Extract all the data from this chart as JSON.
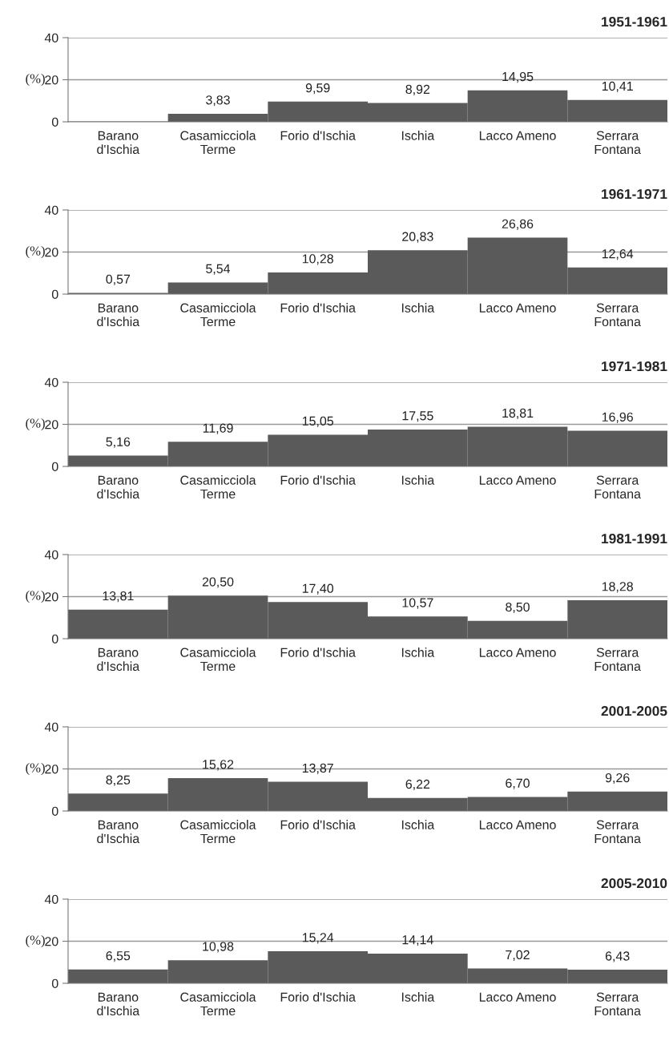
{
  "chart_data": [
    {
      "type": "bar",
      "title": "1951-1961",
      "ylabel": "(%)",
      "categories": [
        "Barano\nd'Ischia",
        "Casamicciola\nTerme",
        "Forio d'Ischia",
        "Ischia",
        "Lacco Ameno",
        "Serrara\nFontana"
      ],
      "values": [
        null,
        3.83,
        9.59,
        8.92,
        14.95,
        10.41
      ],
      "value_labels": [
        null,
        "3,83",
        "9,59",
        "8,92",
        "14,95",
        "10,41"
      ],
      "color": "#5a5a5a",
      "ylim": [
        0,
        40
      ],
      "yticks": [
        0,
        20,
        40
      ],
      "grid": "y"
    },
    {
      "type": "bar",
      "title": "1961-1971",
      "ylabel": "(%)",
      "categories": [
        "Barano\nd'Ischia",
        "Casamicciola\nTerme",
        "Forio d'Ischia",
        "Ischia",
        "Lacco Ameno",
        "Serrara\nFontana"
      ],
      "values": [
        0.57,
        5.54,
        10.28,
        20.83,
        26.86,
        12.64
      ],
      "value_labels": [
        "0,57",
        "5,54",
        "10,28",
        "20,83",
        "26,86",
        "12,64"
      ],
      "color": "#5a5a5a",
      "ylim": [
        0,
        40
      ],
      "yticks": [
        0,
        20,
        40
      ],
      "grid": "y"
    },
    {
      "type": "bar",
      "title": "1971-1981",
      "ylabel": "(%)",
      "categories": [
        "Barano\nd'Ischia",
        "Casamicciola\nTerme",
        "Forio d'Ischia",
        "Ischia",
        "Lacco Ameno",
        "Serrara\nFontana"
      ],
      "values": [
        5.16,
        11.69,
        15.05,
        17.55,
        18.81,
        16.96
      ],
      "value_labels": [
        "5,16",
        "11,69",
        "15,05",
        "17,55",
        "18,81",
        "16,96"
      ],
      "color": "#5a5a5a",
      "ylim": [
        0,
        40
      ],
      "yticks": [
        0,
        20,
        40
      ],
      "grid": "y"
    },
    {
      "type": "bar",
      "title": "1981-1991",
      "ylabel": "(%)",
      "categories": [
        "Barano\nd'Ischia",
        "Casamicciola\nTerme",
        "Forio d'Ischia",
        "Ischia",
        "Lacco Ameno",
        "Serrara\nFontana"
      ],
      "values": [
        13.81,
        20.5,
        17.4,
        10.57,
        8.5,
        18.28
      ],
      "value_labels": [
        "13,81",
        "20,50",
        "17,40",
        "10,57",
        "8,50",
        "18,28"
      ],
      "color": "#5a5a5a",
      "ylim": [
        0,
        40
      ],
      "yticks": [
        0,
        20,
        40
      ],
      "grid": "y"
    },
    {
      "type": "bar",
      "title": "2001-2005",
      "ylabel": "(%)",
      "categories": [
        "Barano\nd'Ischia",
        "Casamicciola\nTerme",
        "Forio d'Ischia",
        "Ischia",
        "Lacco Ameno",
        "Serrara\nFontana"
      ],
      "values": [
        8.25,
        15.62,
        13.87,
        6.22,
        6.7,
        9.26
      ],
      "value_labels": [
        "8,25",
        "15,62",
        "13,87",
        "6,22",
        "6,70",
        "9,26"
      ],
      "color": "#5a5a5a",
      "ylim": [
        0,
        40
      ],
      "yticks": [
        0,
        20,
        40
      ],
      "grid": "y"
    },
    {
      "type": "bar",
      "title": "2005-2010",
      "ylabel": "(%)",
      "categories": [
        "Barano\nd'Ischia",
        "Casamicciola\nTerme",
        "Forio d'Ischia",
        "Ischia",
        "Lacco Ameno",
        "Serrara\nFontana"
      ],
      "values": [
        6.55,
        10.98,
        15.24,
        14.14,
        7.02,
        6.43
      ],
      "value_labels": [
        "6,55",
        "10,98",
        "15,24",
        "14,14",
        "7,02",
        "6,43"
      ],
      "color": "#5a5a5a",
      "ylim": [
        0,
        40
      ],
      "yticks": [
        0,
        20,
        40
      ],
      "grid": "y"
    }
  ]
}
